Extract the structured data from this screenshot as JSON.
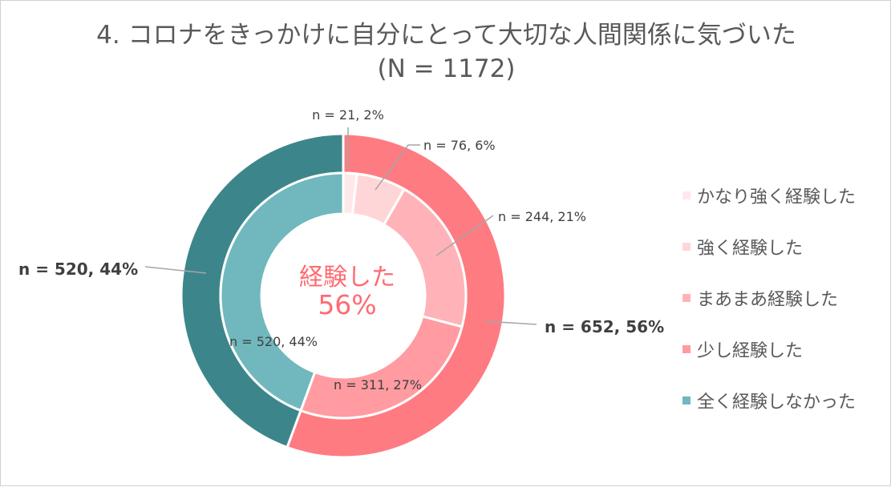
{
  "chart_data": {
    "type": "donut",
    "title": "4. コロナをきっかけに自分にとって大切な人間関係に気づいた",
    "subtitle": "(N = 1172)",
    "center_label": {
      "line1": "経験した",
      "line2": "56%",
      "color": "#ff6b73"
    },
    "inner_ring": [
      {
        "name": "かなり強く経験した",
        "value": 21,
        "percent": 2,
        "label": "n = 21, 2%",
        "color": "#ffe8ea"
      },
      {
        "name": "強く経験した",
        "value": 76,
        "percent": 6,
        "label": "n = 76, 6%",
        "color": "#ffd6d8"
      },
      {
        "name": "まあまあ経験した",
        "value": 244,
        "percent": 21,
        "label": "n = 244, 21%",
        "color": "#ffb3b8"
      },
      {
        "name": "少し経験した",
        "value": 311,
        "percent": 27,
        "label": "n = 311, 27%",
        "color": "#ff9ba1"
      },
      {
        "name": "全く経験しなかった",
        "value": 520,
        "percent": 44,
        "label": "n = 520, 44%",
        "color": "#70b8be"
      }
    ],
    "outer_ring": [
      {
        "value": 652,
        "percent": 56,
        "label": "n = 652, 56%",
        "color": "#ff7b82"
      },
      {
        "value": 520,
        "percent": 44,
        "label": "n = 520, 44%",
        "color": "#3c868b"
      }
    ],
    "legend": {
      "placement": "right",
      "items": [
        {
          "label": "かなり強く経験した",
          "color": "#ffe8ea"
        },
        {
          "label": "強く経験した",
          "color": "#ffd6d8"
        },
        {
          "label": "まあまあ経験した",
          "color": "#ffb3b8"
        },
        {
          "label": "少し経験した",
          "color": "#ff9ba1"
        },
        {
          "label": "全く経験しなかった",
          "color": "#70b8be"
        }
      ]
    }
  }
}
